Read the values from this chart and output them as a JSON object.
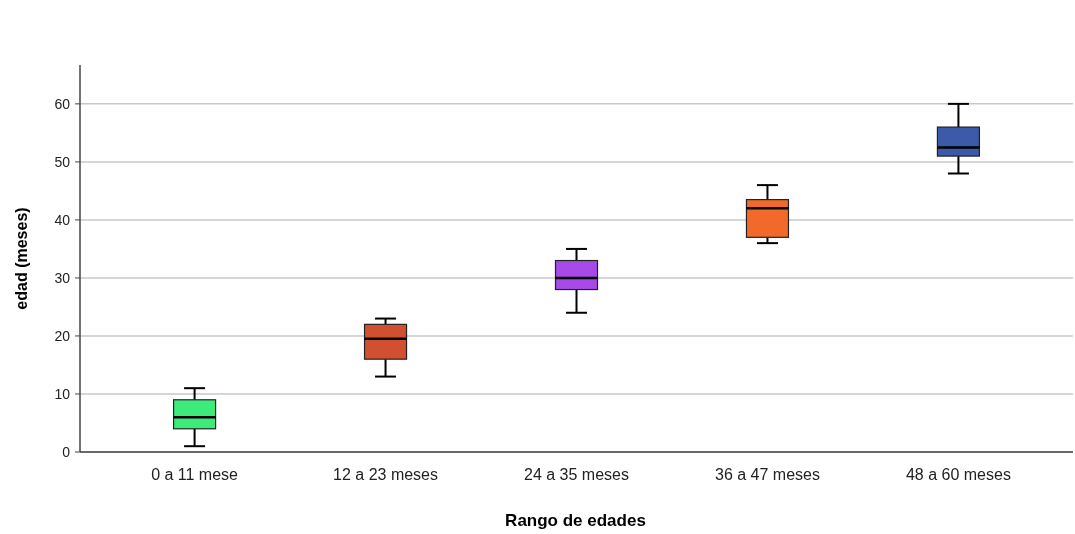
{
  "chart_data": {
    "type": "box",
    "xlabel": "Rango de edades",
    "ylabel": "edad (meses)",
    "categories": [
      "0 a 11 mese",
      "12 a 23 meses",
      "24 a 35 meses",
      "36 a 47 meses",
      "48 a 60 meses"
    ],
    "colors": [
      "#3deb7a",
      "#d15032",
      "#a64ae8",
      "#f26a2b",
      "#3c5aa8"
    ],
    "boxes": [
      {
        "low": 1,
        "q1": 4,
        "median": 6,
        "q3": 9,
        "high": 11
      },
      {
        "low": 13,
        "q1": 16,
        "median": 19.5,
        "q3": 22,
        "high": 23
      },
      {
        "low": 24,
        "q1": 28,
        "median": 30,
        "q3": 33,
        "high": 35
      },
      {
        "low": 36,
        "q1": 37,
        "median": 42,
        "q3": 43.5,
        "high": 46
      },
      {
        "low": 48,
        "q1": 51,
        "median": 52.5,
        "q3": 56,
        "high": 60
      }
    ],
    "ylim": [
      0,
      66.7
    ],
    "yticks": [
      0,
      10,
      20,
      30,
      40,
      50,
      60
    ],
    "grid": "y"
  }
}
